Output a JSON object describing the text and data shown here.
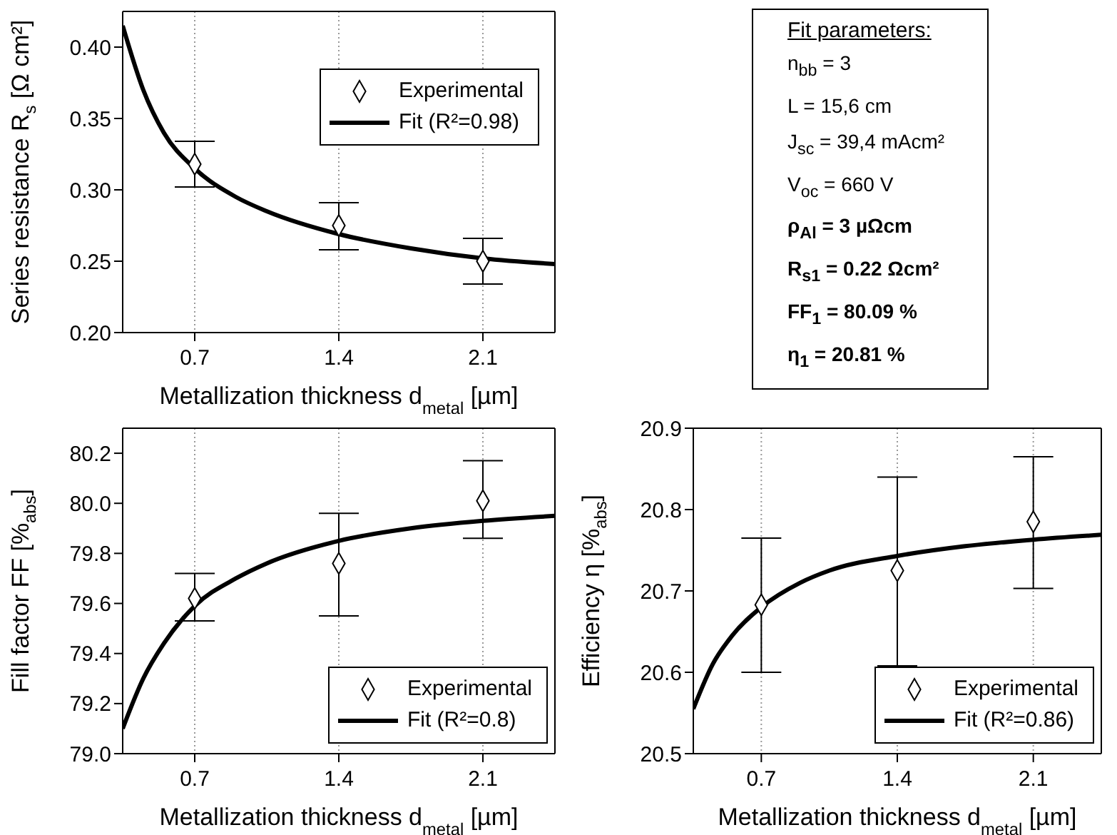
{
  "chart_data": [
    {
      "type": "scatter",
      "xlabel": "Metallization thickness d$_{metal}$ [µm]",
      "ylabel": "Series resistance R$_{s}$ [Ω cm²]",
      "xlim": [
        0.35,
        2.45
      ],
      "xticks": [
        0.7,
        1.4,
        2.1
      ],
      "ylim": [
        0.2,
        0.425
      ],
      "yticks": [
        {
          "value": 0.2,
          "label": "0.20"
        },
        {
          "value": 0.25,
          "label": "0.25"
        },
        {
          "value": 0.3,
          "label": "0.30"
        },
        {
          "value": 0.35,
          "label": "0.35"
        },
        {
          "value": 0.4,
          "label": "0.40"
        }
      ],
      "grid": "x",
      "legend": "top right",
      "series": [
        {
          "name": "Experimental",
          "type": "scatter",
          "marker": "diamond",
          "color": "#000000",
          "x": [
            0.7,
            1.4,
            2.1
          ],
          "values": [
            0.318,
            0.275,
            0.25
          ],
          "errors": [
            [
              0.302,
              0.334
            ],
            [
              0.258,
              0.291
            ],
            [
              0.234,
              0.266
            ]
          ]
        },
        {
          "name": "Fit (R²=0.98)",
          "type": "line",
          "color": "#000000",
          "x": [
            0.35,
            0.45,
            0.55,
            0.7,
            0.9,
            1.05,
            1.4,
            1.75,
            2.1,
            2.45
          ],
          "values": [
            0.415,
            0.37,
            0.34,
            0.315,
            0.295,
            0.285,
            0.269,
            0.259,
            0.252,
            0.248
          ]
        }
      ]
    },
    {
      "type": "other",
      "title": "Fit parameters:",
      "annotations": [
        "n$_{bb}$ = 3",
        "L = 15,6 cm",
        "J$_{sc}$ = 39,4 mAcm²",
        "V$_{oc}$ = 660 V",
        "ρ$_{Al}$ = 3 µΩcm",
        "R$_{s1}$ = 0.22 Ωcm²",
        "FF$_{1}$ = 80.09 %",
        "η$_{1}$ = 20.81 %"
      ]
    },
    {
      "type": "scatter",
      "xlabel": "Metallization thickness d$_{metal}$ [µm]",
      "ylabel": "Fill factor FF [%$_{abs}$]",
      "xlim": [
        0.35,
        2.45
      ],
      "xticks": [
        0.7,
        1.4,
        2.1
      ],
      "ylim": [
        79.0,
        80.3
      ],
      "yticks": [
        {
          "value": 79.0,
          "label": "79.0"
        },
        79.2,
        79.4,
        79.6,
        79.8,
        {
          "value": 80.0,
          "label": "80.0"
        },
        80.2
      ],
      "grid": "x",
      "legend": "bottom right",
      "series": [
        {
          "name": "Experimental",
          "type": "scatter",
          "marker": "diamond",
          "color": "#000000",
          "x": [
            0.7,
            1.4,
            2.1
          ],
          "values": [
            79.62,
            79.76,
            80.01
          ],
          "errors": [
            [
              79.53,
              79.72
            ],
            [
              79.55,
              79.96
            ],
            [
              79.86,
              80.17
            ]
          ]
        },
        {
          "name": "Fit (R²=0.8)",
          "type": "line",
          "color": "#000000",
          "x": [
            0.35,
            0.45,
            0.55,
            0.7,
            0.9,
            1.05,
            1.4,
            1.75,
            2.1,
            2.45
          ],
          "values": [
            79.1,
            79.3,
            79.44,
            79.59,
            79.7,
            79.76,
            79.85,
            79.9,
            79.93,
            79.95
          ]
        }
      ]
    },
    {
      "type": "scatter",
      "xlabel": "Metallization thickness d$_{metal}$ [µm]",
      "ylabel": "Efficiency η [%$_{abs}$]",
      "xlim": [
        0.35,
        2.45
      ],
      "xticks": [
        0.7,
        1.4,
        2.1
      ],
      "ylim": [
        20.5,
        20.9
      ],
      "yticks": [
        20.5,
        20.6,
        20.7,
        20.8,
        20.9
      ],
      "grid": "x",
      "legend": "bottom right",
      "series": [
        {
          "name": "Experimental",
          "type": "scatter",
          "marker": "diamond",
          "color": "#000000",
          "x": [
            0.7,
            1.4,
            2.1
          ],
          "values": [
            20.683,
            20.725,
            20.785
          ],
          "errors": [
            [
              20.6,
              20.765
            ],
            [
              20.608,
              20.84
            ],
            [
              20.703,
              20.865
            ]
          ]
        },
        {
          "name": "Fit (R²=0.86)",
          "type": "line",
          "color": "#000000",
          "x": [
            0.35,
            0.45,
            0.55,
            0.7,
            0.9,
            1.05,
            1.4,
            1.75,
            2.1,
            2.45
          ],
          "values": [
            20.555,
            20.61,
            20.645,
            20.68,
            20.71,
            20.725,
            20.743,
            20.755,
            20.763,
            20.769
          ]
        }
      ]
    }
  ]
}
